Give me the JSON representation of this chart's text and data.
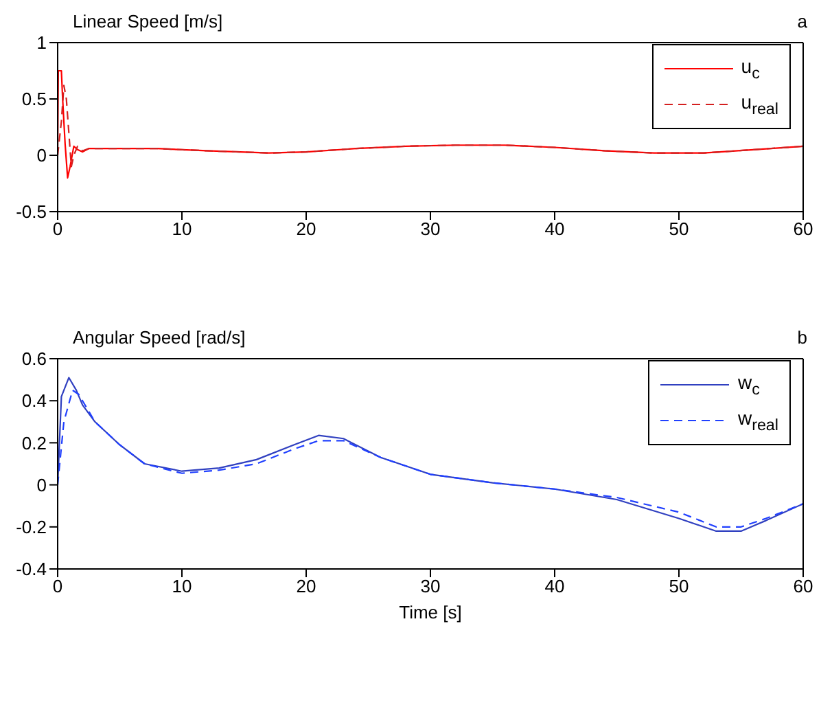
{
  "chart_data": [
    {
      "type": "line",
      "title": "Linear Speed [m/s]",
      "annotations": [
        "a"
      ],
      "xlim": [
        0,
        60
      ],
      "xticks": [
        0,
        10,
        20,
        30,
        40,
        50,
        60
      ],
      "ylim": [
        -0.5,
        1
      ],
      "yticks": [
        -0.5,
        0,
        0.5,
        1
      ],
      "legend": "top right",
      "series": [
        {
          "name": "u$_{c}$",
          "color": "#ff0000",
          "line_style": "solid",
          "x": [
            0,
            0.05,
            0.3,
            0.4,
            0.6,
            0.8,
            1.0,
            1.3,
            1.6,
            2,
            2.5,
            4,
            8,
            12,
            17,
            20,
            24,
            28,
            32,
            36,
            40,
            44,
            48,
            52,
            56,
            60
          ],
          "values": [
            0,
            0.75,
            0.75,
            0.5,
            0.1,
            -0.2,
            -0.1,
            0.08,
            0.05,
            0.03,
            0.06,
            0.06,
            0.06,
            0.04,
            0.02,
            0.03,
            0.06,
            0.08,
            0.09,
            0.09,
            0.07,
            0.04,
            0.02,
            0.02,
            0.05,
            0.08
          ]
        },
        {
          "name": "u$_{real}$",
          "color": "#d42020",
          "line_style": "dashed",
          "x": [
            0,
            0.3,
            0.5,
            0.7,
            0.9,
            1.1,
            1.3,
            1.6,
            2,
            2.5,
            4,
            8,
            12,
            17,
            20,
            24,
            28,
            32,
            36,
            40,
            44,
            48,
            52,
            56,
            60
          ],
          "values": [
            0,
            0.3,
            0.62,
            0.5,
            0.2,
            -0.1,
            0,
            0.08,
            0.04,
            0.06,
            0.06,
            0.06,
            0.04,
            0.02,
            0.03,
            0.06,
            0.08,
            0.09,
            0.09,
            0.07,
            0.04,
            0.02,
            0.02,
            0.05,
            0.08
          ]
        }
      ]
    },
    {
      "type": "line",
      "title": "Angular Speed [rad/s]",
      "annotations": [
        "b"
      ],
      "xlabel": "Time [s]",
      "xlim": [
        0,
        60
      ],
      "xticks": [
        0,
        10,
        20,
        30,
        40,
        50,
        60
      ],
      "ylim": [
        -0.4,
        0.6
      ],
      "yticks": [
        -0.4,
        -0.2,
        0,
        0.2,
        0.4,
        0.6
      ],
      "legend": "top right",
      "series": [
        {
          "name": "w$_{c}$",
          "color": "#3040c0",
          "line_style": "solid",
          "x": [
            0,
            0.3,
            0.9,
            1.5,
            2,
            3,
            5,
            7,
            10,
            13,
            16,
            19,
            21,
            23,
            26,
            30,
            35,
            40,
            45,
            50,
            53,
            55,
            57,
            60
          ],
          "values": [
            0,
            0.42,
            0.51,
            0.45,
            0.38,
            0.3,
            0.19,
            0.1,
            0.065,
            0.08,
            0.12,
            0.19,
            0.235,
            0.22,
            0.13,
            0.05,
            0.01,
            -0.02,
            -0.07,
            -0.16,
            -0.22,
            -0.22,
            -0.17,
            -0.09
          ]
        },
        {
          "name": "w$_{real}$",
          "color": "#2040ff",
          "line_style": "dashed",
          "x": [
            0,
            0.5,
            1.2,
            1.7,
            3,
            5,
            7,
            10,
            13,
            16,
            19,
            21,
            23,
            26,
            30,
            35,
            40,
            45,
            50,
            53,
            55,
            57,
            60
          ],
          "values": [
            0,
            0.3,
            0.45,
            0.43,
            0.3,
            0.19,
            0.1,
            0.055,
            0.07,
            0.1,
            0.17,
            0.21,
            0.21,
            0.13,
            0.05,
            0.01,
            -0.02,
            -0.06,
            -0.13,
            -0.2,
            -0.2,
            -0.16,
            -0.09
          ]
        }
      ]
    }
  ]
}
